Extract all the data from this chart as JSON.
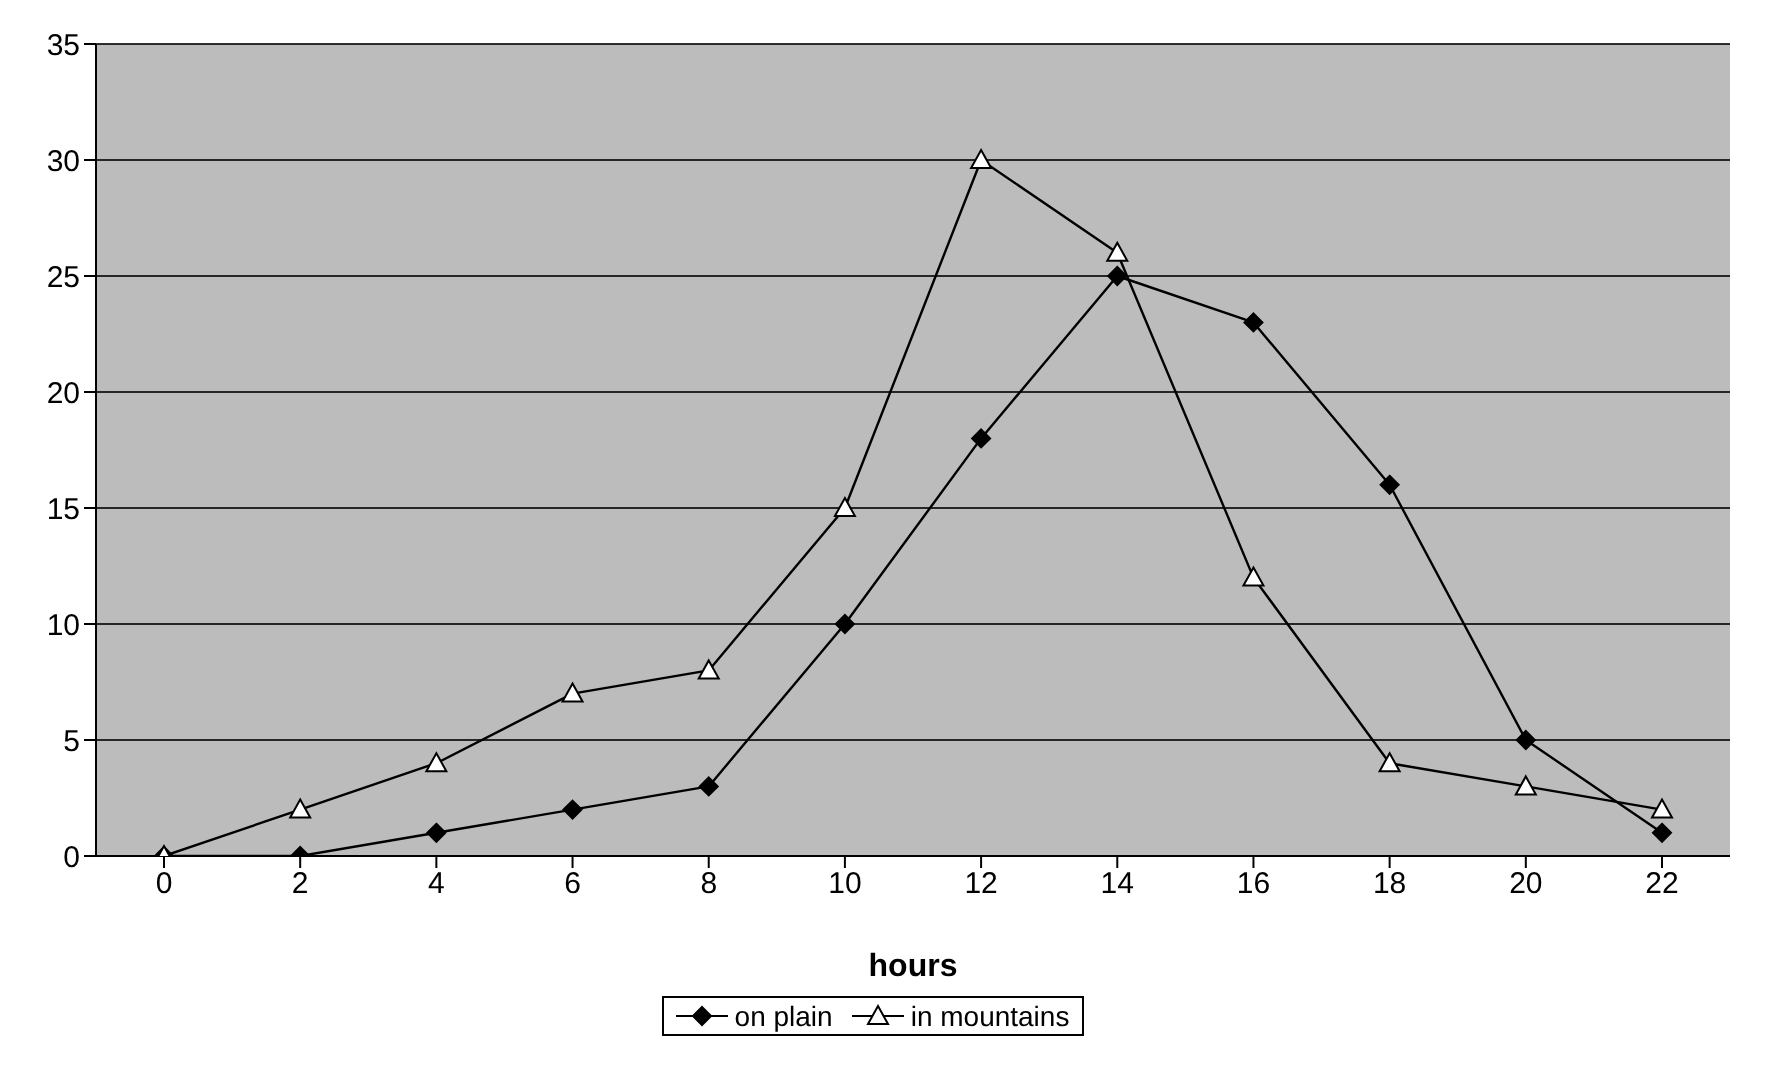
{
  "chart_data": {
    "type": "line",
    "xlabel": "hours",
    "categories": [
      "0",
      "2",
      "4",
      "6",
      "8",
      "10",
      "12",
      "14",
      "16",
      "18",
      "20",
      "22"
    ],
    "series": [
      {
        "name": "on plain",
        "color": "#000000",
        "marker": "diamond",
        "values": [
          0,
          0,
          1,
          2,
          3,
          10,
          18,
          25,
          23,
          16,
          5,
          1
        ]
      },
      {
        "name": "in mountains",
        "color": "#000000",
        "marker": "triangle",
        "values": [
          0,
          2,
          4,
          7,
          8,
          15,
          30,
          26,
          12,
          4,
          3,
          2
        ]
      }
    ],
    "ylim": [
      0,
      35
    ],
    "yticks": [
      0,
      5,
      10,
      15,
      20,
      25,
      30,
      35
    ],
    "grid": "y",
    "legend": "bottom"
  }
}
